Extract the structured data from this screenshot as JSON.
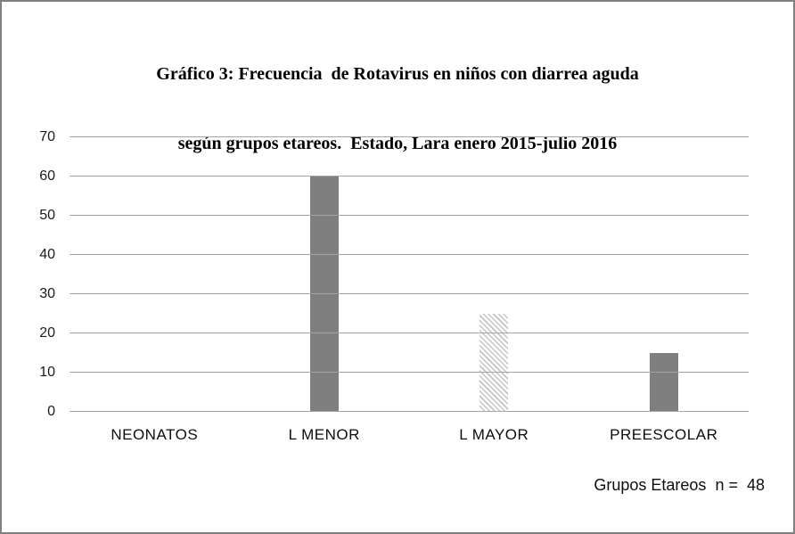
{
  "title": {
    "line1": "Gráfico 3: Frecuencia  de Rotavirus en niños con diarrea aguda",
    "line2": "según grupos etareos.  Estado, Lara enero 2015-julio 2016"
  },
  "chart_data": {
    "type": "bar",
    "title": "Gráfico 3: Frecuencia de Rotavirus en niños con diarrea aguda según grupos etareos. Estado, Lara enero 2015-julio 2016",
    "categories": [
      "NEONATOS",
      "L MENOR",
      "L MAYOR",
      "PREESCOLAR"
    ],
    "values": [
      0,
      60,
      25,
      15
    ],
    "bar_styles": [
      "solid",
      "solid",
      "hatched",
      "solid"
    ],
    "xlabel": "Grupos Etareos",
    "ylabel": "",
    "ylim": [
      0,
      70
    ],
    "yticks": [
      0,
      10,
      20,
      30,
      40,
      50,
      60,
      70
    ],
    "grid": true,
    "legend": "none",
    "sample_size_note": "n = 48"
  },
  "annotation": {
    "text": "Grupos Etareos  n =  48"
  },
  "colors": {
    "bar_solid": "#7f7f7f",
    "hatch_stripe": "#c3c3c3",
    "hatch_background": "#ffffff",
    "gridline": "#a6a6a6",
    "page_border": "#808080",
    "text": "#000000"
  }
}
